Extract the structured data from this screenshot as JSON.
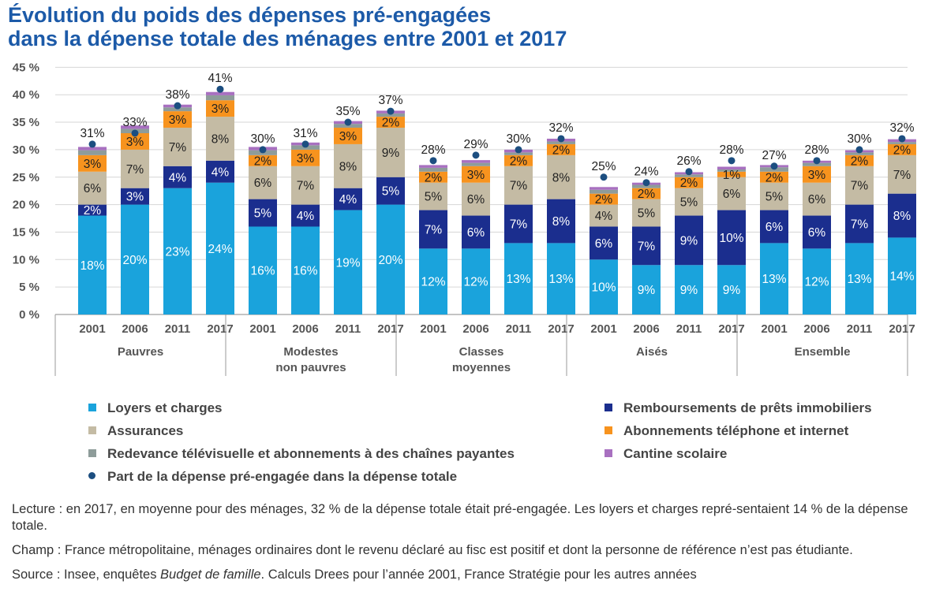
{
  "title_lines": [
    "Évolution du poids des dépenses pré-engagées",
    "dans la dépense totale des ménages entre 2001 et 2017"
  ],
  "chart_data": {
    "type": "bar",
    "stacked": true,
    "y_ticks": [
      "0 %",
      "5 %",
      "10 %",
      "15 %",
      "20 %",
      "25 %",
      "30 %",
      "35 %",
      "40 %",
      "45 %"
    ],
    "ylim": [
      0,
      45
    ],
    "grid": true,
    "groups": [
      {
        "label_lines": [
          "Pauvres"
        ],
        "years": [
          "2001",
          "2006",
          "2011",
          "2017"
        ]
      },
      {
        "label_lines": [
          "Modestes",
          "non pauvres"
        ],
        "years": [
          "2001",
          "2006",
          "2011",
          "2017"
        ]
      },
      {
        "label_lines": [
          "Classes",
          "moyennes"
        ],
        "years": [
          "2001",
          "2006",
          "2011",
          "2017"
        ]
      },
      {
        "label_lines": [
          "Aisés"
        ],
        "years": [
          "2001",
          "2006",
          "2011",
          "2017"
        ]
      },
      {
        "label_lines": [
          "Ensemble"
        ],
        "years": [
          "2001",
          "2006",
          "2011",
          "2017"
        ]
      }
    ],
    "series": [
      {
        "name": "Loyers et charges",
        "color": "#1aa3dc",
        "values": [
          18,
          20,
          23,
          24,
          16,
          16,
          19,
          20,
          12,
          12,
          13,
          13,
          10,
          9,
          9,
          9,
          13,
          12,
          13,
          14
        ],
        "labels": [
          "18%",
          "20%",
          "23%",
          "24%",
          "16%",
          "16%",
          "19%",
          "20%",
          "12%",
          "12%",
          "13%",
          "13%",
          "10%",
          "9%",
          "9%",
          "9%",
          "13%",
          "12%",
          "13%",
          "14%"
        ],
        "label_color": "#ffffff"
      },
      {
        "name": "Remboursements de prêts immobiliers",
        "color": "#1b2e8e",
        "values": [
          2,
          3,
          4,
          4,
          5,
          4,
          4,
          5,
          7,
          6,
          7,
          8,
          6,
          7,
          9,
          10,
          6,
          6,
          7,
          8
        ],
        "labels": [
          "2%",
          "3%",
          "4%",
          "4%",
          "5%",
          "4%",
          "4%",
          "5%",
          "7%",
          "6%",
          "7%",
          "8%",
          "6%",
          "7%",
          "9%",
          "10%",
          "6%",
          "6%",
          "7%",
          "8%"
        ],
        "label_color": "#ffffff"
      },
      {
        "name": "Assurances",
        "color": "#c4bba4",
        "values": [
          6,
          7,
          7,
          8,
          6,
          7,
          8,
          9,
          5,
          6,
          7,
          8,
          4,
          5,
          5,
          6,
          5,
          6,
          7,
          7
        ],
        "labels": [
          "6%",
          "7%",
          "7%",
          "8%",
          "6%",
          "7%",
          "8%",
          "9%",
          "5%",
          "6%",
          "7%",
          "8%",
          "4%",
          "5%",
          "5%",
          "6%",
          "5%",
          "6%",
          "7%",
          "7%"
        ],
        "label_color": "#222222"
      },
      {
        "name": "Abonnements téléphone et internet",
        "color": "#f7931e",
        "values": [
          3,
          3,
          3,
          3,
          2,
          3,
          3,
          2,
          2,
          3,
          2,
          2,
          2,
          2,
          2,
          1,
          2,
          3,
          2,
          2
        ],
        "labels": [
          "3%",
          "3%",
          "3%",
          "3%",
          "2%",
          "3%",
          "3%",
          "2%",
          "2%",
          "3%",
          "2%",
          "2%",
          "2%",
          "2%",
          "2%",
          "1%",
          "2%",
          "3%",
          "2%",
          "2%"
        ],
        "label_color": "#222222"
      },
      {
        "name": "Redevance télévisuelle et abonnements à des chaînes payantes",
        "color": "#8e9c9a",
        "values": [
          0.9,
          0.8,
          0.7,
          0.9,
          0.9,
          0.8,
          0.7,
          0.6,
          0.7,
          0.6,
          0.5,
          0.5,
          0.7,
          0.6,
          0.5,
          0.4,
          0.8,
          0.6,
          0.5,
          0.4
        ]
      },
      {
        "name": "Cantine scolaire",
        "color": "#a870c0",
        "values": [
          0.6,
          0.6,
          0.5,
          0.6,
          0.6,
          0.5,
          0.5,
          0.5,
          0.5,
          0.5,
          0.5,
          0.5,
          0.5,
          0.4,
          0.4,
          0.5,
          0.4,
          0.4,
          0.4,
          0.5
        ]
      }
    ],
    "dot_series": {
      "name": "Part de la dépense pré-engagée dans la dépense totale",
      "color": "#1c4e80",
      "values": [
        31,
        33,
        38,
        41,
        30,
        31,
        35,
        37,
        28,
        29,
        30,
        32,
        25,
        24,
        26,
        28,
        27,
        28,
        30,
        32
      ],
      "labels": [
        "31%",
        "33%",
        "38%",
        "41%",
        "30%",
        "31%",
        "35%",
        "37%",
        "28%",
        "29%",
        "30%",
        "32%",
        "25%",
        "24%",
        "26%",
        "28%",
        "27%",
        "28%",
        "30%",
        "32%"
      ]
    }
  },
  "legend": {
    "left": [
      {
        "label": "Loyers et charges",
        "color": "#1aa3dc"
      },
      {
        "label": "Assurances",
        "color": "#c4bba4"
      },
      {
        "label": "Redevance télévisuelle et abonnements à des chaînes payantes",
        "color": "#8e9c9a"
      },
      {
        "label": "Part de la dépense pré-engagée dans la dépense totale",
        "color": "#1c4e80"
      }
    ],
    "right": [
      {
        "label": "Remboursements de prêts immobiliers",
        "color": "#1b2e8e"
      },
      {
        "label": "Abonnements téléphone et internet",
        "color": "#f7931e"
      },
      {
        "label": "Cantine scolaire",
        "color": "#a870c0"
      }
    ]
  },
  "notes": {
    "lecture": "Lecture : en 2017, en moyenne pour des ménages, 32 % de la dépense totale était pré-engagée. Les loyers et charges repré-sentaient 14 % de la dépense totale.",
    "champ": "Champ : France métropolitaine, ménages ordinaires dont le revenu déclaré au fisc est positif et dont la personne de référence n’est pas étudiante.",
    "source_prefix": "Source : Insee, enquêtes ",
    "source_italic": "Budget de famille",
    "source_suffix": ". Calculs Drees pour l’année 2001, France Stratégie pour les autres années"
  }
}
